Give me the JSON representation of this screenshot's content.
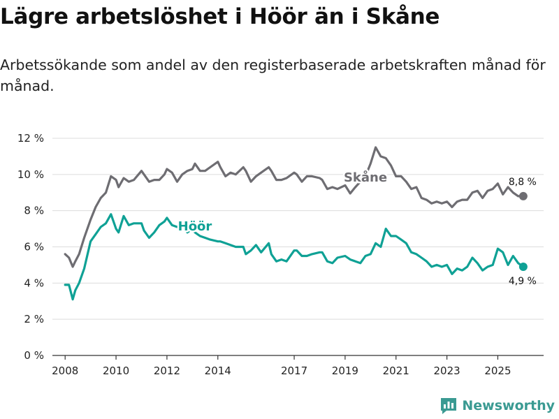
{
  "header": {
    "title": "Lägre arbetslöshet i Höör än i Skåne",
    "subtitle": "Arbetssökande som andel av den registerbaserade arbetskraften månad för månad."
  },
  "brand": {
    "name": "Newsworthy"
  },
  "colors": {
    "skane": "#6e6d72",
    "hoor": "#0fa195",
    "grid": "#dcdcdc",
    "axis": "#333333"
  },
  "chart_data": {
    "type": "line",
    "title": "Lägre arbetslöshet i Höör än i Skåne",
    "xlabel": "",
    "ylabel": "",
    "ylim": [
      0,
      12
    ],
    "xlim": [
      2007.5,
      2026.8
    ],
    "yticks": [
      0,
      2,
      4,
      6,
      8,
      10,
      12
    ],
    "ytick_labels": [
      "0 %",
      "2 %",
      "4 %",
      "6 %",
      "8 %",
      "10 %",
      "12 %"
    ],
    "xticks": [
      2008,
      2010,
      2012,
      2014,
      2017,
      2019,
      2021,
      2023,
      2025
    ],
    "xtick_labels": [
      "2008",
      "2010",
      "2012",
      "2014",
      "2017",
      "2019",
      "2021",
      "2023",
      "2025"
    ],
    "grid": true,
    "series": [
      {
        "name": "Skåne",
        "color": "#6e6d72",
        "end_label": "8,8 %",
        "x": [
          2008.0,
          2008.15,
          2008.3,
          2008.4,
          2008.55,
          2008.75,
          2009.0,
          2009.2,
          2009.4,
          2009.6,
          2009.8,
          2010.0,
          2010.1,
          2010.3,
          2010.5,
          2010.7,
          2011.0,
          2011.1,
          2011.3,
          2011.5,
          2011.7,
          2011.9,
          2012.0,
          2012.2,
          2012.4,
          2012.6,
          2012.8,
          2013.0,
          2013.1,
          2013.3,
          2013.5,
          2013.7,
          2014.0,
          2014.1,
          2014.3,
          2014.5,
          2014.7,
          2015.0,
          2015.1,
          2015.3,
          2015.5,
          2015.7,
          2016.0,
          2016.1,
          2016.3,
          2016.5,
          2016.7,
          2017.0,
          2017.1,
          2017.3,
          2017.5,
          2017.7,
          2018.0,
          2018.1,
          2018.3,
          2018.5,
          2018.7,
          2019.0,
          2019.2,
          2019.4,
          2019.6,
          2019.8,
          2020.0,
          2020.2,
          2020.4,
          2020.6,
          2020.8,
          2021.0,
          2021.2,
          2021.4,
          2021.6,
          2021.8,
          2022.0,
          2022.2,
          2022.4,
          2022.6,
          2022.8,
          2023.0,
          2023.2,
          2023.4,
          2023.6,
          2023.8,
          2024.0,
          2024.2,
          2024.4,
          2024.6,
          2024.8,
          2025.0,
          2025.2,
          2025.4,
          2025.6,
          2025.8,
          2026.0
        ],
        "values": [
          5.6,
          5.4,
          4.9,
          5.2,
          5.6,
          6.5,
          7.5,
          8.2,
          8.7,
          9.0,
          9.9,
          9.7,
          9.3,
          9.8,
          9.6,
          9.7,
          10.2,
          10.0,
          9.6,
          9.7,
          9.7,
          10.0,
          10.3,
          10.1,
          9.6,
          10.0,
          10.2,
          10.3,
          10.6,
          10.2,
          10.2,
          10.4,
          10.7,
          10.4,
          9.9,
          10.1,
          10.0,
          10.4,
          10.2,
          9.6,
          9.9,
          10.1,
          10.4,
          10.2,
          9.7,
          9.7,
          9.8,
          10.1,
          10.0,
          9.6,
          9.9,
          9.9,
          9.8,
          9.7,
          9.2,
          9.3,
          9.2,
          9.4,
          8.95,
          9.3,
          9.6,
          9.9,
          10.6,
          11.5,
          11.0,
          10.9,
          10.5,
          9.9,
          9.9,
          9.6,
          9.2,
          9.3,
          8.7,
          8.6,
          8.4,
          8.5,
          8.4,
          8.5,
          8.2,
          8.5,
          8.6,
          8.6,
          9.0,
          9.1,
          8.7,
          9.1,
          9.2,
          9.5,
          8.9,
          9.3,
          9.0,
          8.8,
          8.8
        ]
      },
      {
        "name": "Höör",
        "color": "#0fa195",
        "end_label": "4,9 %",
        "x": [
          2008.0,
          2008.15,
          2008.3,
          2008.4,
          2008.55,
          2008.75,
          2009.0,
          2009.2,
          2009.4,
          2009.6,
          2009.8,
          2010.0,
          2010.1,
          2010.3,
          2010.5,
          2010.7,
          2011.0,
          2011.1,
          2011.3,
          2011.5,
          2011.7,
          2011.9,
          2012.0,
          2012.2,
          2012.4,
          2012.6,
          2012.8,
          2013.0,
          2013.1,
          2013.3,
          2013.5,
          2013.7,
          2014.0,
          2014.1,
          2014.3,
          2014.5,
          2014.7,
          2015.0,
          2015.1,
          2015.3,
          2015.5,
          2015.7,
          2016.0,
          2016.1,
          2016.3,
          2016.5,
          2016.7,
          2017.0,
          2017.1,
          2017.3,
          2017.5,
          2017.7,
          2018.0,
          2018.1,
          2018.3,
          2018.5,
          2018.7,
          2019.0,
          2019.2,
          2019.4,
          2019.6,
          2019.8,
          2020.0,
          2020.2,
          2020.4,
          2020.6,
          2020.8,
          2021.0,
          2021.2,
          2021.4,
          2021.6,
          2021.8,
          2022.0,
          2022.2,
          2022.4,
          2022.6,
          2022.8,
          2023.0,
          2023.2,
          2023.4,
          2023.6,
          2023.8,
          2024.0,
          2024.2,
          2024.4,
          2024.6,
          2024.8,
          2025.0,
          2025.2,
          2025.4,
          2025.6,
          2025.8,
          2026.0
        ],
        "values": [
          3.9,
          3.9,
          3.1,
          3.6,
          4.0,
          4.8,
          6.3,
          6.7,
          7.1,
          7.3,
          7.8,
          7.0,
          6.8,
          7.7,
          7.2,
          7.3,
          7.3,
          6.9,
          6.5,
          6.8,
          7.2,
          7.4,
          7.6,
          7.2,
          7.1,
          7.3,
          6.8,
          7.0,
          6.8,
          6.6,
          6.5,
          6.4,
          6.3,
          6.3,
          6.2,
          6.1,
          6.0,
          6.0,
          5.6,
          5.8,
          6.1,
          5.7,
          6.2,
          5.6,
          5.2,
          5.3,
          5.2,
          5.8,
          5.8,
          5.5,
          5.5,
          5.6,
          5.7,
          5.7,
          5.2,
          5.1,
          5.4,
          5.5,
          5.3,
          5.2,
          5.1,
          5.5,
          5.6,
          6.2,
          6.0,
          7.0,
          6.6,
          6.6,
          6.4,
          6.2,
          5.7,
          5.6,
          5.4,
          5.2,
          4.9,
          5.0,
          4.9,
          5.0,
          4.5,
          4.8,
          4.7,
          4.9,
          5.4,
          5.1,
          4.7,
          4.9,
          5.0,
          5.9,
          5.7,
          5.0,
          5.5,
          5.1,
          4.9
        ]
      }
    ],
    "annotations": [
      {
        "text": "Skåne",
        "series": "Skåne",
        "x": 2019.8,
        "y": 9.6
      },
      {
        "text": "Höör",
        "series": "Höör",
        "x": 2013.1,
        "y": 6.9
      }
    ]
  }
}
